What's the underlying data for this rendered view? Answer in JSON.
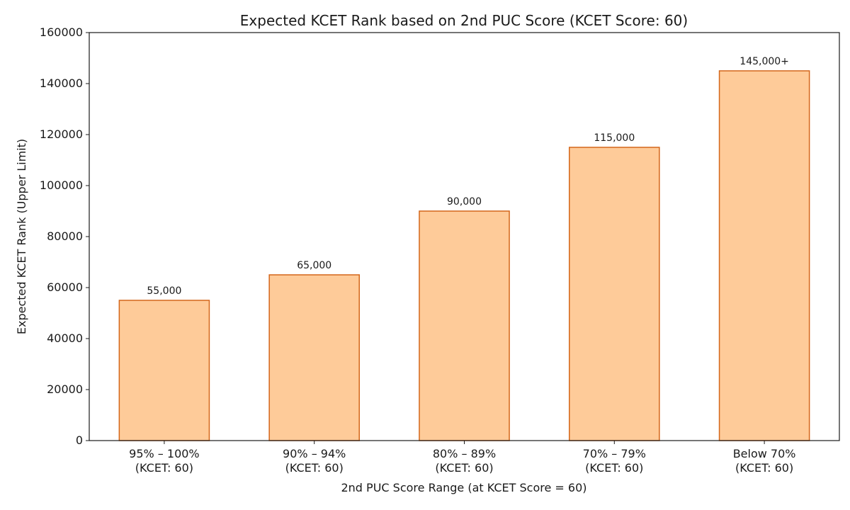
{
  "chart_data": {
    "type": "bar",
    "title": "Expected KCET Rank based on 2nd PUC Score (KCET Score: 60)",
    "xlabel": "2nd PUC Score Range (at KCET Score = 60)",
    "ylabel": "Expected KCET Rank (Upper Limit)",
    "categories": [
      [
        "95% – 100%",
        "(KCET: 60)"
      ],
      [
        "90% – 94%",
        "(KCET: 60)"
      ],
      [
        "80% – 89%",
        "(KCET: 60)"
      ],
      [
        "70% – 79%",
        "(KCET: 60)"
      ],
      [
        "Below 70%",
        "(KCET: 60)"
      ]
    ],
    "values": [
      55000,
      65000,
      90000,
      115000,
      145000
    ],
    "data_labels": [
      "55,000",
      "65,000",
      "90,000",
      "115,000",
      "145,000+"
    ],
    "ylim": [
      0,
      160000
    ],
    "yticks": [
      0,
      20000,
      40000,
      60000,
      80000,
      100000,
      120000,
      140000,
      160000
    ],
    "ytick_labels": [
      "0",
      "20000",
      "40000",
      "60000",
      "80000",
      "100000",
      "120000",
      "140000",
      "160000"
    ],
    "grid": false,
    "colors": {
      "bar_fill": "#fecb99",
      "bar_edge": "#d4661a"
    }
  }
}
